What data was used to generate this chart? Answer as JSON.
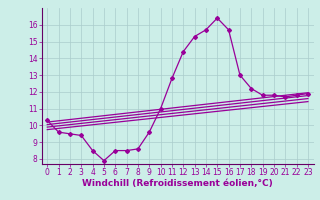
{
  "main_line": {
    "x": [
      0,
      1,
      2,
      3,
      4,
      5,
      6,
      7,
      8,
      9,
      10,
      11,
      12,
      13,
      14,
      15,
      16,
      17,
      18,
      19,
      20,
      21,
      22,
      23
    ],
    "y": [
      10.3,
      9.6,
      9.5,
      9.4,
      8.5,
      7.9,
      8.5,
      8.5,
      8.6,
      9.6,
      11.0,
      12.8,
      14.4,
      15.3,
      15.7,
      16.4,
      15.7,
      13.0,
      12.2,
      11.8,
      11.8,
      11.7,
      11.8,
      11.9
    ]
  },
  "flat_lines": [
    {
      "x": [
        0,
        23
      ],
      "y": [
        10.2,
        11.95
      ]
    },
    {
      "x": [
        0,
        23
      ],
      "y": [
        10.05,
        11.78
      ]
    },
    {
      "x": [
        0,
        23
      ],
      "y": [
        9.9,
        11.6
      ]
    },
    {
      "x": [
        0,
        23
      ],
      "y": [
        9.75,
        11.42
      ]
    }
  ],
  "color": "#990099",
  "bg_color": "#cceee8",
  "grid_color": "#aacccc",
  "xlabel": "Windchill (Refroidissement éolien,°C)",
  "xlim": [
    -0.5,
    23.5
  ],
  "ylim": [
    7.7,
    17.0
  ],
  "yticks": [
    8,
    9,
    10,
    11,
    12,
    13,
    14,
    15,
    16
  ],
  "xticks": [
    0,
    1,
    2,
    3,
    4,
    5,
    6,
    7,
    8,
    9,
    10,
    11,
    12,
    13,
    14,
    15,
    16,
    17,
    18,
    19,
    20,
    21,
    22,
    23
  ],
  "marker": "D",
  "markersize": 2.0,
  "linewidth": 0.9,
  "xlabel_fontsize": 6.5,
  "tick_fontsize": 5.5,
  "spine_color": "#660066"
}
